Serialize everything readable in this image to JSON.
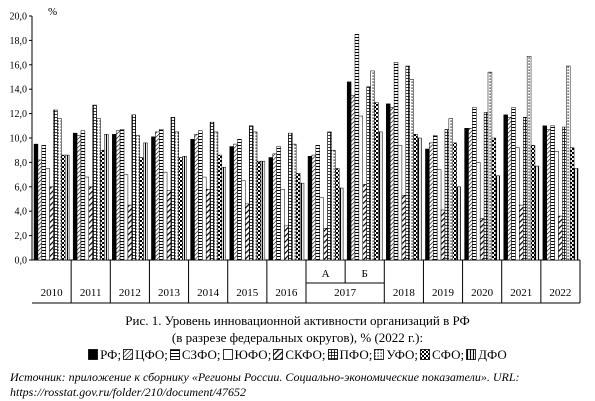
{
  "chart_data": {
    "type": "bar",
    "ylabel": "%",
    "ylim": [
      0,
      20
    ],
    "yticks": [
      "0,0",
      "2,0",
      "4,0",
      "6,0",
      "8,0",
      "10,0",
      "12,0",
      "14,0",
      "16,0",
      "18,0",
      "20,0"
    ],
    "grid": false,
    "categories": [
      {
        "label": "2010",
        "sub": ""
      },
      {
        "label": "2011",
        "sub": ""
      },
      {
        "label": "2012",
        "sub": ""
      },
      {
        "label": "2013",
        "sub": ""
      },
      {
        "label": "2014",
        "sub": ""
      },
      {
        "label": "2015",
        "sub": ""
      },
      {
        "label": "2016",
        "sub": ""
      },
      {
        "label": "2017",
        "sub": "А"
      },
      {
        "label": "",
        "sub": "Б"
      },
      {
        "label": "2018",
        "sub": ""
      },
      {
        "label": "2019",
        "sub": ""
      },
      {
        "label": "2020",
        "sub": ""
      },
      {
        "label": "2021",
        "sub": ""
      },
      {
        "label": "2022",
        "sub": ""
      }
    ],
    "series": [
      {
        "name": "РФ",
        "pattern": "solid",
        "values": [
          9.5,
          10.4,
          10.3,
          10.1,
          9.9,
          9.3,
          8.4,
          8.5,
          14.6,
          12.8,
          9.1,
          10.8,
          11.9,
          11.0
        ]
      },
      {
        "name": "ЦФО",
        "pattern": "diag",
        "values": [
          8.2,
          10.2,
          10.6,
          10.5,
          10.3,
          9.5,
          8.7,
          8.6,
          13.5,
          12.5,
          9.6,
          10.8,
          11.7,
          10.7
        ]
      },
      {
        "name": "СЗФО",
        "pattern": "hstripe",
        "values": [
          9.4,
          10.6,
          10.7,
          10.7,
          10.6,
          9.9,
          9.3,
          9.4,
          18.5,
          16.2,
          10.2,
          12.5,
          12.5,
          11.0
        ]
      },
      {
        "name": "ЮФО",
        "pattern": "empty",
        "values": [
          7.5,
          6.8,
          7.0,
          7.2,
          6.8,
          6.5,
          5.8,
          5.1,
          11.8,
          9.4,
          7.4,
          8.0,
          9.2,
          8.9
        ]
      },
      {
        "name": "СКФО",
        "pattern": "thickdiag",
        "values": [
          6.0,
          6.0,
          4.5,
          5.7,
          5.8,
          4.6,
          2.8,
          2.6,
          6.2,
          5.3,
          4.1,
          3.4,
          4.5,
          3.6
        ]
      },
      {
        "name": "ПФО",
        "pattern": "grid",
        "values": [
          12.3,
          12.7,
          11.9,
          11.7,
          11.3,
          11.0,
          10.4,
          10.5,
          14.2,
          15.9,
          10.7,
          12.1,
          11.7,
          10.9
        ]
      },
      {
        "name": "УФО",
        "pattern": "dots",
        "values": [
          11.6,
          11.6,
          10.2,
          10.5,
          10.5,
          10.5,
          9.5,
          9.0,
          15.5,
          14.8,
          11.6,
          15.4,
          16.7,
          15.9
        ]
      },
      {
        "name": "СФО",
        "pattern": "check",
        "values": [
          8.6,
          9.0,
          8.4,
          8.4,
          8.6,
          8.1,
          7.1,
          7.5,
          12.9,
          10.3,
          9.6,
          10.0,
          9.4,
          9.2
        ]
      },
      {
        "name": "ДФО",
        "pattern": "vstripe",
        "values": [
          8.6,
          10.3,
          9.6,
          8.5,
          7.6,
          8.1,
          6.3,
          5.9,
          10.5,
          10.0,
          6.0,
          6.9,
          7.7,
          7.5
        ]
      }
    ]
  },
  "caption": {
    "title": "Рис. 1. Уровень инновационной активности организаций в РФ",
    "subtitle": "(в разрезе федеральных округов), % (2022 г.):"
  },
  "legend": [
    {
      "text": "РФ;",
      "pattern": "solid"
    },
    {
      "text": "ЦФО;",
      "pattern": "diag"
    },
    {
      "text": "СЗФО;",
      "pattern": "hstripe"
    },
    {
      "text": "ЮФО;",
      "pattern": "empty"
    },
    {
      "text": "СКФО;",
      "pattern": "thickdiag"
    },
    {
      "text": "ПФО;",
      "pattern": "grid"
    },
    {
      "text": "УФО;",
      "pattern": "dots"
    },
    {
      "text": "СФО;",
      "pattern": "check"
    },
    {
      "text": "ДФО",
      "pattern": "vstripe"
    }
  ],
  "source": "Источник: приложение к сборнику «Регионы России. Социально-экономические показатели». URL: https://rosstat.gov.ru/folder/210/document/47652"
}
